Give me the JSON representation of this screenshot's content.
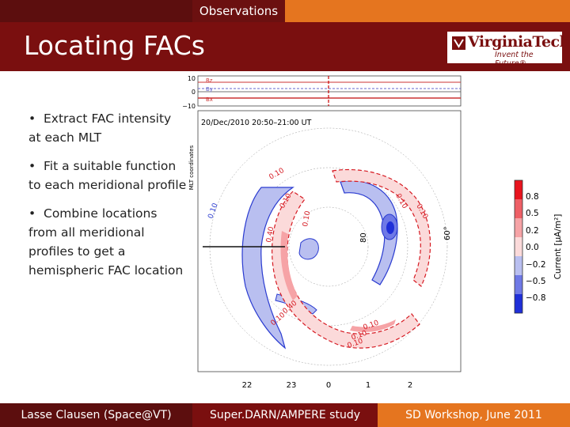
{
  "header": {
    "section_tab": "Observations",
    "title": "Locating FACs"
  },
  "logo": {
    "wordmark": "VirginiaTech",
    "tagline": "Invent the Future®"
  },
  "bullets": [
    "Extract FAC intensity at each MLT",
    "Fit a suitable function to each meridional profile",
    "Combine locations from all meridional profiles to get a hemispheric FAC location"
  ],
  "figure": {
    "imf_panel": {
      "ticks": [
        "10",
        "0",
        "−10"
      ],
      "labels": [
        "Bz",
        "By",
        "Bx"
      ]
    },
    "axis_label": "MLT coordinates",
    "timestamp": "20/Dec/2010 20:50–21:00 UT",
    "mlt_ticks": [
      "22",
      "23",
      "0",
      "1",
      "2"
    ],
    "lat_labels": [
      "80",
      "60°"
    ],
    "contour_labels": [
      "0.10",
      "0.10",
      "0.10",
      "0.10",
      "0.10",
      "0.10",
      "0.10",
      "0.10",
      "0.40",
      "0.10",
      "0.40",
      "0.10"
    ],
    "colorbar": {
      "ticks": [
        "0.8",
        "0.5",
        "0.2",
        "0.0",
        "−0.2",
        "−0.5",
        "−0.8"
      ],
      "label": "Current [μA/m²]",
      "colors": [
        "#e8141e",
        "#ee5f66",
        "#f6a3a6",
        "#fbdada",
        "#b9bff0",
        "#6f79e6",
        "#1f2fd8"
      ]
    }
  },
  "footer": {
    "author": "Lasse Clausen (Space@VT)",
    "study": "Super.DARN/AMPERE study",
    "event": "SD Workshop, June 2011"
  }
}
